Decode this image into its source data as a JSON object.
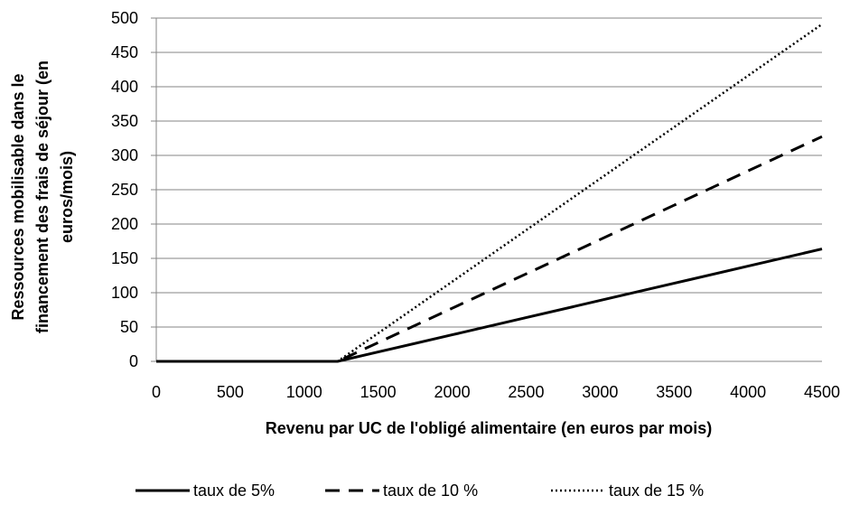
{
  "chart_data": {
    "type": "line",
    "x": [
      0,
      500,
      1000,
      1226,
      1500,
      2000,
      2500,
      3000,
      3500,
      4000,
      4500
    ],
    "series": [
      {
        "name": "taux de 5%",
        "style": "solid",
        "values": [
          0,
          0,
          0,
          0,
          13.7,
          38.7,
          63.7,
          88.7,
          113.7,
          138.7,
          163.7
        ]
      },
      {
        "name": "taux de 10 %",
        "style": "dashed",
        "values": [
          0,
          0,
          0,
          0,
          27.4,
          77.4,
          127.4,
          177.4,
          227.4,
          277.4,
          327.4
        ]
      },
      {
        "name": "taux de 15 %",
        "style": "dotted",
        "values": [
          0,
          0,
          0,
          0,
          41.1,
          116.1,
          191.1,
          266.1,
          341.1,
          416.1,
          491.1
        ]
      }
    ],
    "xlabel": "Revenu par UC de l'obligé alimentaire (en euros par mois)",
    "ylabel": "Ressources mobilisable dans le financement des frais de séjour (en euros/mois)",
    "ylabel_lines": [
      "Ressources mobilisable dans le",
      "financement des frais de séjour (en",
      "euros/mois)"
    ],
    "xlim": [
      0,
      4500
    ],
    "ylim": [
      0,
      500
    ],
    "xticks": [
      0,
      500,
      1000,
      1500,
      2000,
      2500,
      3000,
      3500,
      4000,
      4500
    ],
    "yticks": [
      0,
      50,
      100,
      150,
      200,
      250,
      300,
      350,
      400,
      450,
      500
    ],
    "grid": "horizontal",
    "legend": "bottom",
    "colors": {
      "line": "#000000",
      "grid": "#868686",
      "axis": "#868686"
    }
  }
}
